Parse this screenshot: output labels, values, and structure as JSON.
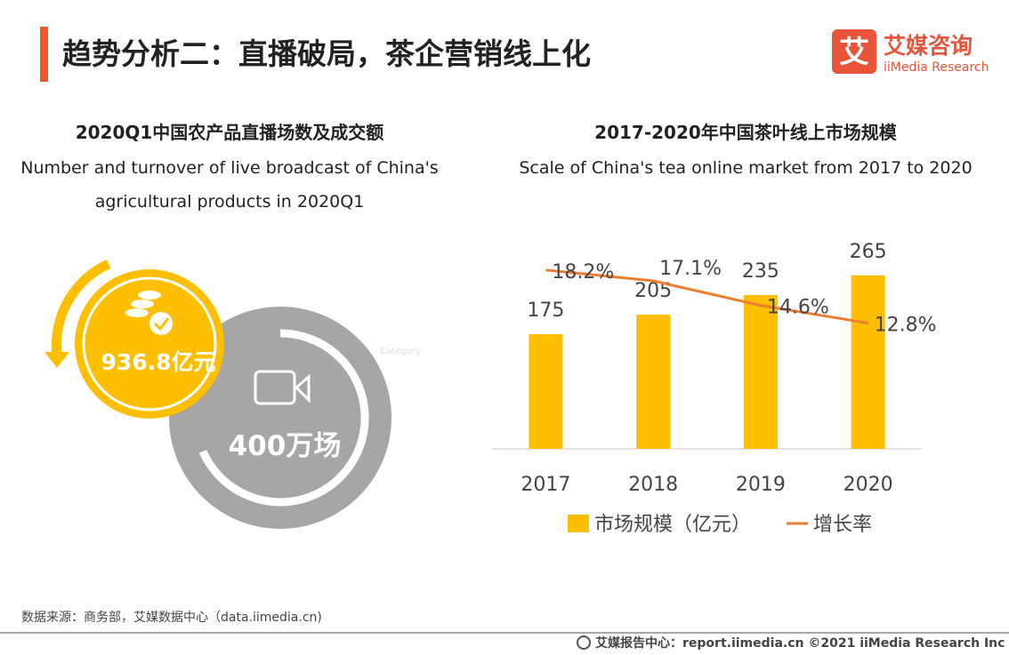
{
  "header": {
    "title": "趋势分析二：直播破局，茶企营销线上化"
  },
  "logo": {
    "mark": "艾",
    "cn": "艾媒咨询",
    "en": "iiMedia Research"
  },
  "infographic": {
    "title": "2020Q1中国农产品直播场数及成交额",
    "subtitle_lines": [
      "Number and turnover of live broadcast of China's",
      "agricultural products in 2020Q1"
    ],
    "turnover": "936.8亿元",
    "sessions": "400万场",
    "placeholder": "Category"
  },
  "chart_data": {
    "type": "bar_line",
    "title": "2017-2020年中国茶叶线上市场规模",
    "subtitle": "Scale of China's tea online market from 2017 to 2020",
    "categories": [
      "2017",
      "2018",
      "2019",
      "2020"
    ],
    "series": [
      {
        "name": "市场规模（亿元）",
        "type": "bar",
        "color": "#fdbf00",
        "values": [
          175,
          205,
          235,
          265
        ]
      },
      {
        "name": "增长率",
        "type": "line",
        "axis": "y2",
        "color": "#ed7d31",
        "values": [
          18.2,
          17.1,
          14.6,
          12.8
        ],
        "value_labels": [
          "18.2%",
          "17.1%",
          "14.6%",
          "12.8%"
        ]
      }
    ],
    "ylim": [
      0,
      300
    ],
    "y2lim": [
      0,
      20
    ],
    "legend": "bottom"
  },
  "footer": {
    "source": "数据来源：商务部，艾媒数据中心（data.iimedia.cn)",
    "credit": "艾媒报告中心：report.iimedia.cn   ©2021  iiMedia Research  Inc"
  }
}
